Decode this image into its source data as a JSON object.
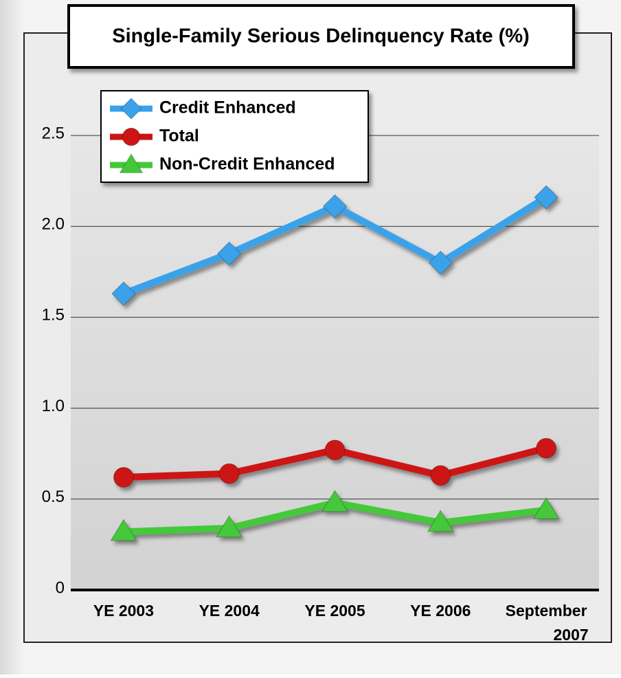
{
  "chart_data": {
    "type": "line",
    "title": "Single-Family Serious Delinquency Rate (%)",
    "categories": [
      "YE 2003",
      "YE 2004",
      "YE 2005",
      "YE 2006",
      "September 2007"
    ],
    "series": [
      {
        "name": "Credit Enhanced",
        "color": "#3aa2ea",
        "marker": "diamond",
        "values": [
          1.63,
          1.85,
          2.11,
          1.8,
          2.16
        ]
      },
      {
        "name": "Total",
        "color": "#cc1414",
        "marker": "circle",
        "values": [
          0.62,
          0.64,
          0.77,
          0.63,
          0.78
        ]
      },
      {
        "name": "Non-Credit Enhanced",
        "color": "#44c83a",
        "marker": "triangle",
        "values": [
          0.32,
          0.34,
          0.48,
          0.37,
          0.44
        ]
      }
    ],
    "ylim": [
      0,
      2.5
    ],
    "yticks": [
      0,
      0.5,
      {
        "value": 1,
        "label": "1.0"
      },
      1.5,
      {
        "value": 2,
        "label": "2.0"
      },
      2.5
    ],
    "grid": true,
    "legend": "top-left"
  }
}
